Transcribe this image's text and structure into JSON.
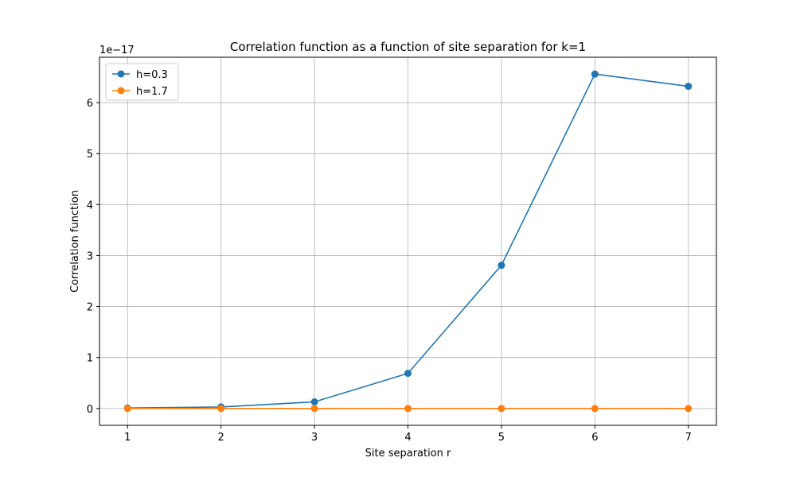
{
  "chart_data": {
    "type": "line",
    "title": "Correlation function as a function of site separation for k=1",
    "xlabel": "Site separation r",
    "ylabel": "Correlation function",
    "y_offset_label": "1e−17",
    "x": [
      1,
      2,
      3,
      4,
      5,
      6,
      7
    ],
    "x_ticks": [
      1,
      2,
      3,
      4,
      5,
      6,
      7
    ],
    "y_ticks": [
      0,
      1,
      2,
      3,
      4,
      5,
      6
    ],
    "xlim": [
      0.7,
      7.3
    ],
    "ylim": [
      -0.33,
      6.89
    ],
    "grid": true,
    "legend_position": "upper-left",
    "series": [
      {
        "name": "h=0.3",
        "color": "#1f77b4",
        "marker": "circle",
        "values": [
          0.01,
          0.03,
          0.13,
          0.69,
          2.81,
          6.56,
          6.32
        ]
      },
      {
        "name": "h=1.7",
        "color": "#ff7f0e",
        "marker": "circle",
        "values": [
          0.0,
          0.0,
          0.0,
          0.0,
          0.0,
          0.0,
          0.0
        ]
      }
    ]
  }
}
